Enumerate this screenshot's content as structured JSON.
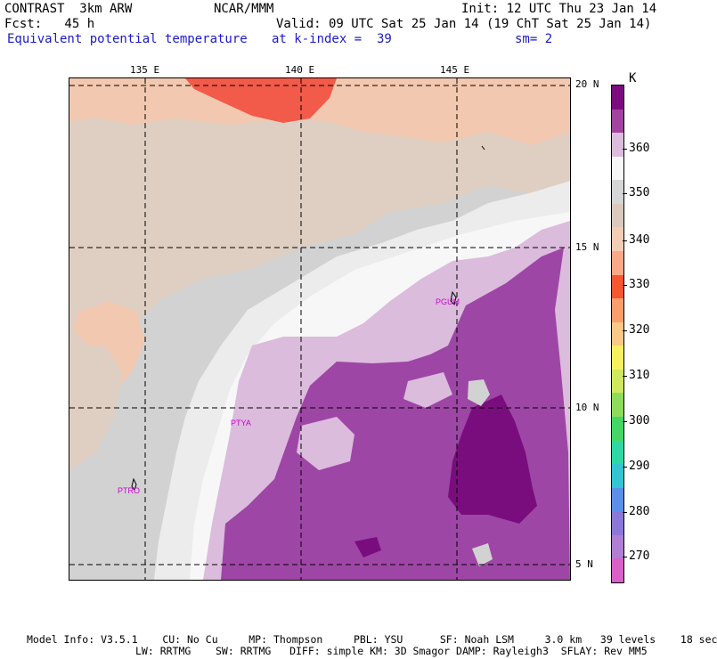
{
  "header": {
    "model": "CONTRAST  3km ARW",
    "org": "NCAR/MMM",
    "init": "Init: 12 UTC Thu 23 Jan 14",
    "fcst": "Fcst:   45 h",
    "valid": "Valid: 09 UTC Sat 25 Jan 14 (19 ChT Sat 25 Jan 14)",
    "field": "Equivalent potential temperature",
    "level": "at k-index =  39",
    "smooth": "sm= 2"
  },
  "map": {
    "lon_labels": [
      "135 E",
      "140 E",
      "145 E"
    ],
    "lat_labels": [
      "20 N",
      "15 N",
      "10 N",
      "5 N"
    ],
    "stations": [
      "PGUM",
      "PTYA",
      "PTRO"
    ],
    "colors": {
      "c330": "#f25a4a",
      "c340": "#f3c8b0",
      "c345": "#dfcfc2",
      "c350": "#d2d2d2",
      "c355": "#ececec",
      "c360": "#f7f7f7",
      "c365": "#dbbcdc",
      "c370": "#9e46a6",
      "c375": "#7a0d7e"
    }
  },
  "legend": {
    "unit": "K",
    "labels": [
      "360",
      "350",
      "340",
      "330",
      "320",
      "310",
      "300",
      "290",
      "280",
      "270"
    ],
    "colors": [
      "#7d0b80",
      "#a2439f",
      "#dcbcdc",
      "#f7f7f7",
      "#d6d6d6",
      "#dbc9bd",
      "#f3cdb3",
      "#fba888",
      "#f7562f",
      "#fb9e6c",
      "#fcc885",
      "#f8f060",
      "#cfe85f",
      "#8fdc5c",
      "#45d766",
      "#2ed8a4",
      "#33c5d4",
      "#5c90e8",
      "#8b78d8",
      "#b07ed4",
      "#d860c8"
    ]
  },
  "footer": {
    "line1": "Model Info: V3.5.1    CU: No Cu     MP: Thompson     PBL: YSU      SF: Noah LSM     3.0 km   39 levels    18 sec",
    "line2": "LW: RRTMG    SW: RRTMG   DIFF: simple KM: 3D Smagor DAMP: Rayleigh3  SFLAY: Rev MM5"
  }
}
